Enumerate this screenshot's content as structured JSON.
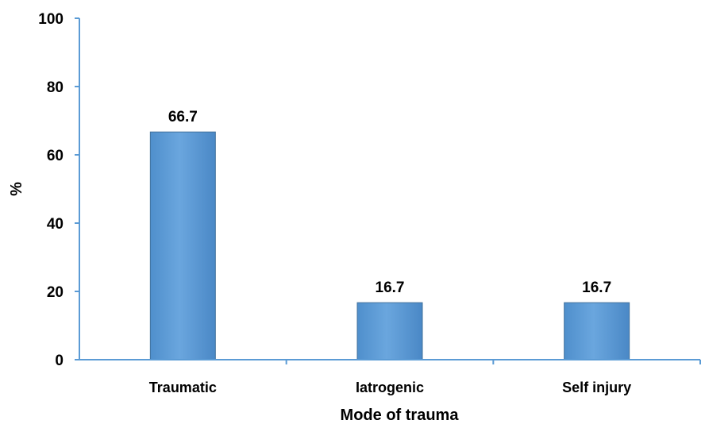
{
  "chart_data": {
    "type": "bar",
    "title": "",
    "xlabel": "Mode of trauma",
    "ylabel": "%",
    "categories": [
      "Traumatic",
      "Iatrogenic",
      "Self injury"
    ],
    "values": [
      66.7,
      16.7,
      16.7
    ],
    "data_labels": [
      "66.7",
      "16.7",
      "16.7"
    ],
    "ylim": [
      0,
      100
    ],
    "yticks": [
      0,
      20,
      40,
      60,
      80,
      100
    ],
    "ytick_labels": [
      "0",
      "20",
      "40",
      "60",
      "80",
      "100"
    ],
    "grid": false,
    "legend": "none",
    "colors": {
      "bar_fill": "#5b9bd5",
      "bar_stroke": "#41719c",
      "axis": "#5b9bd5"
    }
  }
}
